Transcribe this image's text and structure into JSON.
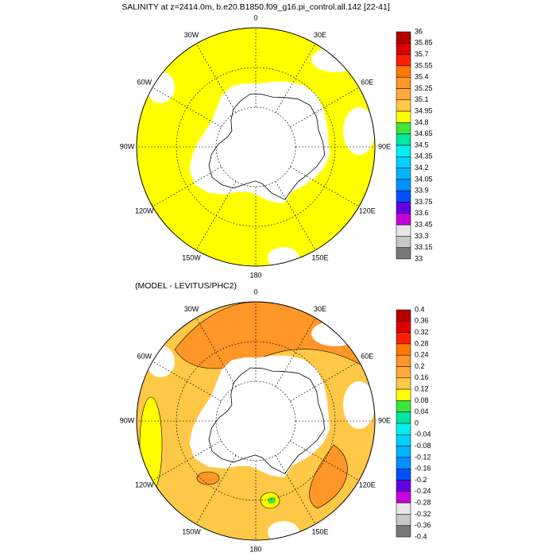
{
  "title": "SALINITY at z=2414.0m, b.e20.B1850.f09_g16.pi_control.all.142 [22-41]",
  "colors": [
    "#b40000",
    "#dc0000",
    "#ff1e00",
    "#ff7800",
    "#ff9628",
    "#ffaa3c",
    "#ffc846",
    "#ffff00",
    "#3ce63c",
    "#00e6a0",
    "#00f0f0",
    "#00d2ff",
    "#00b4ff",
    "#0090ff",
    "#0050ff",
    "#6400e6",
    "#c800dc",
    "#e6e6e6",
    "#c8c8c8",
    "#787878"
  ],
  "panels": [
    {
      "lon_labels": [
        "0",
        "30E",
        "60E",
        "90E",
        "120E",
        "150E",
        "180",
        "150W",
        "120W",
        "90W",
        "60W",
        "30W"
      ],
      "colorbar_labels": [
        "36",
        "35.85",
        "35.7",
        "35.55",
        "35.4",
        "35.25",
        "35.1",
        "34.95",
        "34.8",
        "34.65",
        "34.5",
        "34.35",
        "34.2",
        "34.05",
        "33.9",
        "33.75",
        "33.6",
        "33.45",
        "33.3",
        "33.15",
        "33"
      ]
    },
    {
      "subtitle": "(MODEL - LEVITUS/PHC2)",
      "lon_labels": [
        "0",
        "30E",
        "60E",
        "90E",
        "120E",
        "150E",
        "180",
        "150W",
        "120W",
        "90W",
        "60W",
        "30W"
      ],
      "colorbar_labels": [
        "0.4",
        "0.36",
        "0.32",
        "0.28",
        "0.24",
        "0.2",
        "0.16",
        "0.12",
        "0.08",
        "0.04",
        "0",
        "-0.04",
        "-0.08",
        "-0.12",
        "-0.16",
        "-0.2",
        "-0.24",
        "-0.28",
        "-0.32",
        "-0.36",
        "-0.4"
      ]
    }
  ]
}
